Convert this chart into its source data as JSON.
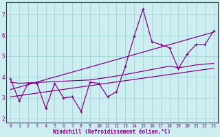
{
  "background_color": "#cceef0",
  "grid_color": "#a8d8dc",
  "line_color": "#880088",
  "xlabel": "Windchill (Refroidissement éolien,°C)",
  "xlim": [
    -0.5,
    23.5
  ],
  "ylim": [
    1.8,
    7.6
  ],
  "yticks": [
    2,
    3,
    4,
    5,
    6,
    7
  ],
  "xticks": [
    0,
    1,
    2,
    3,
    4,
    5,
    6,
    7,
    8,
    9,
    10,
    11,
    12,
    13,
    14,
    15,
    16,
    17,
    18,
    19,
    20,
    21,
    22,
    23
  ],
  "series1_x": [
    0,
    1,
    2,
    3,
    4,
    5,
    6,
    7,
    8,
    9,
    10,
    11,
    12,
    13,
    14,
    15,
    16,
    17,
    18,
    19,
    20,
    21,
    22,
    23
  ],
  "series1_y": [
    3.9,
    2.85,
    3.7,
    3.7,
    2.5,
    3.7,
    3.0,
    3.05,
    2.35,
    3.75,
    3.7,
    3.05,
    3.3,
    4.5,
    5.95,
    7.25,
    5.7,
    5.55,
    5.4,
    4.4,
    5.1,
    5.55,
    5.55,
    6.2
  ],
  "series2_x": [
    0,
    1,
    2,
    3,
    4,
    5,
    6,
    7,
    8,
    9,
    10,
    11,
    12,
    13,
    14,
    15,
    16,
    17,
    18,
    19,
    20,
    21,
    22,
    23
  ],
  "series2_y": [
    3.75,
    3.7,
    3.72,
    3.74,
    3.76,
    3.78,
    3.8,
    3.82,
    3.84,
    3.86,
    3.92,
    3.98,
    4.05,
    4.12,
    4.2,
    4.28,
    4.36,
    4.44,
    4.52,
    4.45,
    4.5,
    4.58,
    4.62,
    4.65
  ],
  "series3_x": [
    0,
    23
  ],
  "series3_y": [
    3.05,
    4.42
  ],
  "series4_x": [
    0,
    23
  ],
  "series4_y": [
    3.4,
    6.15
  ]
}
